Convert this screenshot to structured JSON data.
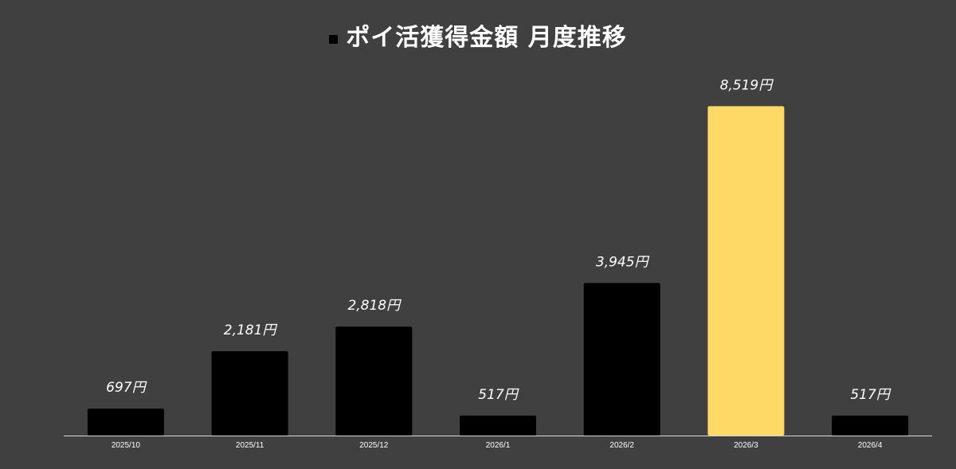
{
  "chart_data": {
    "type": "bar",
    "title": "ポイ活獲得金額 月度推移",
    "xlabel": "",
    "ylabel": "",
    "categories": [
      "2025/10",
      "2025/11",
      "2025/12",
      "2026/1",
      "2026/2",
      "2026/3",
      "2026/4"
    ],
    "values": [
      697,
      2181,
      2818,
      517,
      3945,
      8519,
      517
    ],
    "data_labels": [
      "697円",
      "2,181円",
      "2,818円",
      "517円",
      "3,945円",
      "8,519円",
      "517円"
    ],
    "highlight_index": 5,
    "ylim": [
      0,
      9000
    ],
    "grid": false,
    "legend": "none",
    "colors": {
      "background": "#404040",
      "bar": "#000000",
      "highlight": "#FFD966",
      "text": "#ffffff",
      "axis": "#d9d9d9"
    }
  }
}
